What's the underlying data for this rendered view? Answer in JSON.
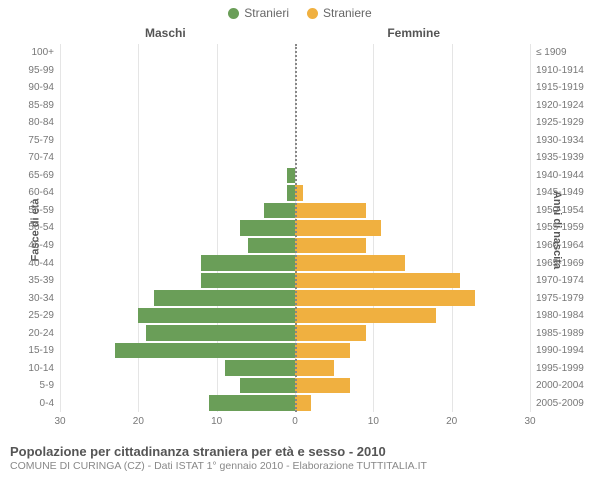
{
  "legend": {
    "male": {
      "label": "Stranieri",
      "color": "#6a9e58"
    },
    "female": {
      "label": "Straniere",
      "color": "#f0b040"
    }
  },
  "headers": {
    "male": "Maschi",
    "female": "Femmine",
    "left_axis": "Fasce di età",
    "right_axis": "Anni di nascita"
  },
  "chart": {
    "type": "population-pyramid",
    "xmax": 30,
    "xticks": [
      30,
      20,
      10,
      0,
      10,
      20,
      30
    ],
    "grid_color": "#e5e5e5",
    "center_line_color": "#888888",
    "bg_color": "#ffffff",
    "rows": [
      {
        "age": "100+",
        "birth": "≤ 1909",
        "m": 0,
        "f": 0
      },
      {
        "age": "95-99",
        "birth": "1910-1914",
        "m": 0,
        "f": 0
      },
      {
        "age": "90-94",
        "birth": "1915-1919",
        "m": 0,
        "f": 0
      },
      {
        "age": "85-89",
        "birth": "1920-1924",
        "m": 0,
        "f": 0
      },
      {
        "age": "80-84",
        "birth": "1925-1929",
        "m": 0,
        "f": 0
      },
      {
        "age": "75-79",
        "birth": "1930-1934",
        "m": 0,
        "f": 0
      },
      {
        "age": "70-74",
        "birth": "1935-1939",
        "m": 0,
        "f": 0
      },
      {
        "age": "65-69",
        "birth": "1940-1944",
        "m": 1,
        "f": 0
      },
      {
        "age": "60-64",
        "birth": "1945-1949",
        "m": 1,
        "f": 1
      },
      {
        "age": "55-59",
        "birth": "1950-1954",
        "m": 4,
        "f": 9
      },
      {
        "age": "50-54",
        "birth": "1955-1959",
        "m": 7,
        "f": 11
      },
      {
        "age": "45-49",
        "birth": "1960-1964",
        "m": 6,
        "f": 9
      },
      {
        "age": "40-44",
        "birth": "1965-1969",
        "m": 12,
        "f": 14
      },
      {
        "age": "35-39",
        "birth": "1970-1974",
        "m": 12,
        "f": 21
      },
      {
        "age": "30-34",
        "birth": "1975-1979",
        "m": 18,
        "f": 23
      },
      {
        "age": "25-29",
        "birth": "1980-1984",
        "m": 20,
        "f": 18
      },
      {
        "age": "20-24",
        "birth": "1985-1989",
        "m": 19,
        "f": 9
      },
      {
        "age": "15-19",
        "birth": "1990-1994",
        "m": 23,
        "f": 7
      },
      {
        "age": "10-14",
        "birth": "1995-1999",
        "m": 9,
        "f": 5
      },
      {
        "age": "5-9",
        "birth": "2000-2004",
        "m": 7,
        "f": 7
      },
      {
        "age": "0-4",
        "birth": "2005-2009",
        "m": 11,
        "f": 2
      }
    ]
  },
  "footer": {
    "title": "Popolazione per cittadinanza straniera per età e sesso - 2010",
    "subtitle": "COMUNE DI CURINGA (CZ) - Dati ISTAT 1° gennaio 2010 - Elaborazione TUTTITALIA.IT"
  }
}
